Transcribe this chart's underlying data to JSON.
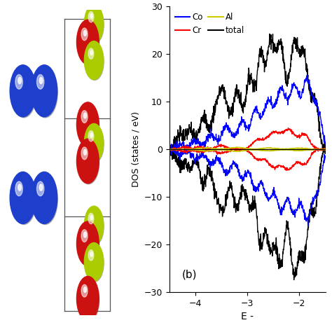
{
  "title": "",
  "ylabel": "DOS (states / eV)",
  "xlabel": "E -",
  "xlim": [
    -4.5,
    -1.5
  ],
  "ylim": [
    -30,
    30
  ],
  "yticks": [
    -30,
    -20,
    -10,
    0,
    10,
    20,
    30
  ],
  "xticks": [
    -4,
    -3,
    -2
  ],
  "label_b": "(b)",
  "background_color": "#FFFFFF",
  "co_color": "#0000FF",
  "cr_color": "#FF0000",
  "al_color": "#CCCC00",
  "total_color": "#000000",
  "co_atom_color": "#1E3FCC",
  "cr_atom_color": "#CC1111",
  "al_atom_color": "#AACC00"
}
